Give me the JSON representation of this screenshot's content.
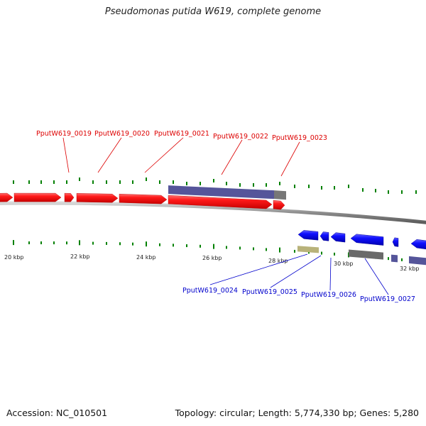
{
  "title": "Pseudomonas putida W619, complete genome",
  "footer": {
    "accession": "Accession: NC_010501",
    "summary": "Topology: circular; Length: 5,774,330 bp; Genes: 5,280"
  },
  "colors": {
    "forward_gene": "#ff0000",
    "reverse_gene": "#0000ff",
    "forward_label": "#dd0000",
    "reverse_label": "#0000cc",
    "tick": "#008000",
    "backbone": "#7a7a7a",
    "feature_purple": "#55559a",
    "feature_gray": "#6a6a6a",
    "feature_olive": "#b8b27a"
  },
  "axis_labels": [
    "20 kbp",
    "22 kbp",
    "24 kbp",
    "26 kbp",
    "28 kbp",
    "30 kbp",
    "32 kbp"
  ],
  "forward_genes": [
    "PputW619_0019",
    "PputW619_0020",
    "PputW619_0021",
    "PputW619_0022",
    "PputW619_0023"
  ],
  "reverse_genes": [
    "PputW619_0024",
    "PputW619_0025",
    "PputW619_0026",
    "PputW619_0027"
  ]
}
